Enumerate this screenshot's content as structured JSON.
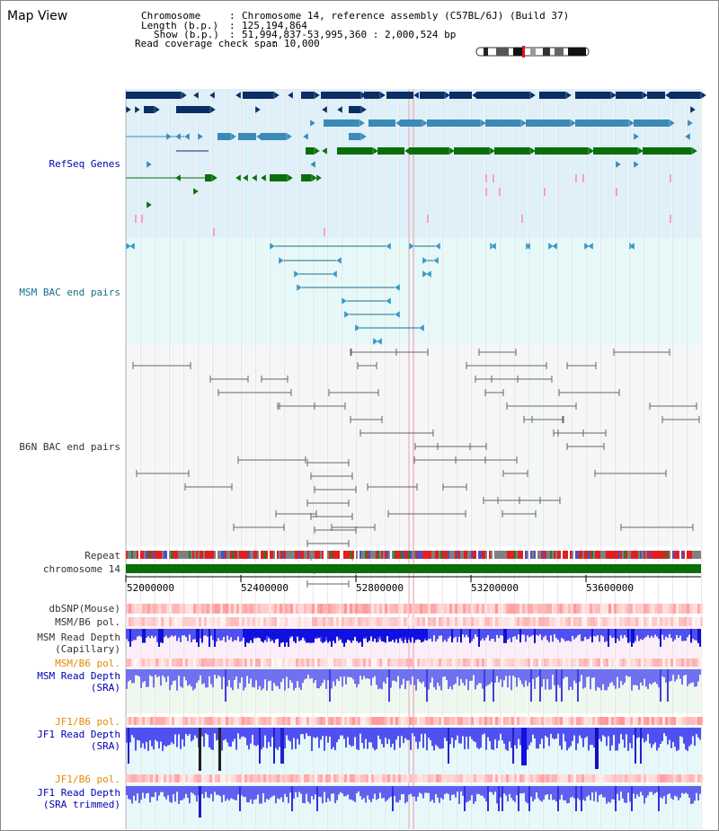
{
  "window_title": "Map View",
  "info": {
    "chromosome_label": "Chromosome",
    "chromosome_value": "Chromosome 14, reference assembly (C57BL/6J) (Build 37)",
    "length_label": "Length (b.p.)",
    "length_value": "125,194,864",
    "show_label": "Show (b.p.)",
    "show_value": "51,994,837-53,995,360 : 2,000,524 bp",
    "coverage_label": "Read coverage check span",
    "coverage_value": "10,000"
  },
  "tracks": {
    "refseq": "RefSeq Genes",
    "msm_bac": "MSM BAC end pairs",
    "b6n_bac": "B6N BAC end pairs",
    "repeat": "Repeat",
    "chromosome": "chromosome 14",
    "dbsnp": "dbSNP(Mouse)",
    "msm_b6_pol_1": "MSM/B6 pol.",
    "msm_depth_cap_1": "MSM Read Depth",
    "msm_depth_cap_2": "(Capillary)",
    "msm_b6_pol_2": "MSM/B6 pol.",
    "msm_depth_sra_1": "MSM Read Depth",
    "msm_depth_sra_2": "(SRA)",
    "jf1_b6_pol_1": "JF1/B6 pol.",
    "jf1_depth_sra_1": "JF1 Read Depth",
    "jf1_depth_sra_2": "(SRA)",
    "jf1_b6_pol_2": "JF1/B6 pol.",
    "jf1_depth_trim_1": "JF1 Read Depth",
    "jf1_depth_trim_2": "(SRA trimmed)"
  },
  "axis": {
    "ticks": [
      "52000000",
      "52400000",
      "52800000",
      "53200000",
      "53600000"
    ]
  },
  "colors": {
    "refseq_bg": "#dff0f8",
    "msm_bac_bg": "#e6f8f8",
    "b6n_bg": "#f4f6f8",
    "gene_dark": "#0a2e64",
    "gene_mid": "#3a8ab8",
    "gene_green": "#0a6e0a",
    "chrom_green": "#0a6e0a",
    "pink": "#f8a0c0"
  }
}
